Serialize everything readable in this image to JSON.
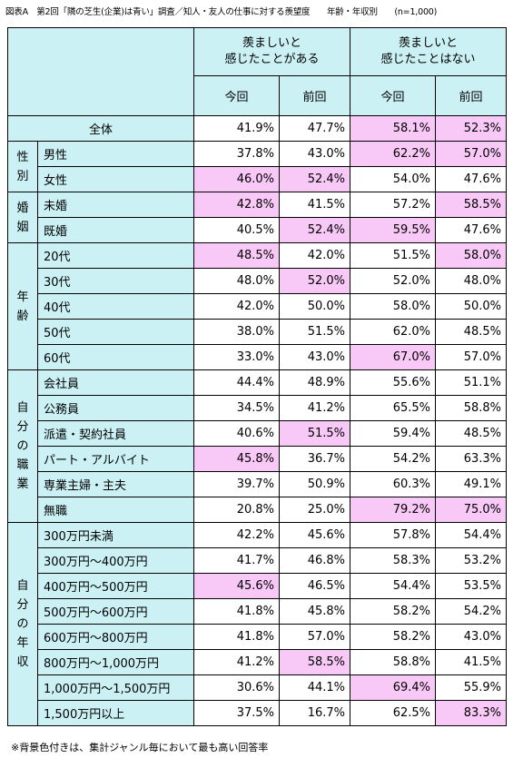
{
  "title": "図表A　第2回「隣の芝生(企業)は青い」調査／知人・友人の仕事に対する羨望度　　年齢・年収別　　(n=1,000)",
  "header": {
    "group1_line1": "羨ましいと",
    "group1_line2": "感じたことがある",
    "group2_line1": "羨ましいと",
    "group2_line2": "感じたことはない",
    "current": "今回",
    "previous": "前回"
  },
  "total": {
    "label": "全体",
    "v": [
      "41.9%",
      "47.7%",
      "58.1%",
      "52.3%"
    ],
    "hl": [
      false,
      false,
      true,
      true
    ]
  },
  "groups": [
    {
      "name": [
        "性",
        "別"
      ],
      "rows": [
        {
          "label": "男性",
          "v": [
            "37.8%",
            "43.0%",
            "62.2%",
            "57.0%"
          ],
          "hl": [
            false,
            false,
            true,
            true
          ]
        },
        {
          "label": "女性",
          "v": [
            "46.0%",
            "52.4%",
            "54.0%",
            "47.6%"
          ],
          "hl": [
            true,
            true,
            false,
            false
          ]
        }
      ]
    },
    {
      "name": [
        "婚",
        "姻"
      ],
      "rows": [
        {
          "label": "未婚",
          "v": [
            "42.8%",
            "41.5%",
            "57.2%",
            "58.5%"
          ],
          "hl": [
            true,
            false,
            false,
            true
          ]
        },
        {
          "label": "既婚",
          "v": [
            "40.5%",
            "52.4%",
            "59.5%",
            "47.6%"
          ],
          "hl": [
            false,
            true,
            true,
            false
          ]
        }
      ]
    },
    {
      "name": [
        "年",
        "齢"
      ],
      "rows": [
        {
          "label": "20代",
          "v": [
            "48.5%",
            "42.0%",
            "51.5%",
            "58.0%"
          ],
          "hl": [
            true,
            false,
            false,
            true
          ]
        },
        {
          "label": "30代",
          "v": [
            "48.0%",
            "52.0%",
            "52.0%",
            "48.0%"
          ],
          "hl": [
            false,
            true,
            false,
            false
          ]
        },
        {
          "label": "40代",
          "v": [
            "42.0%",
            "50.0%",
            "58.0%",
            "50.0%"
          ],
          "hl": [
            false,
            false,
            false,
            false
          ]
        },
        {
          "label": "50代",
          "v": [
            "38.0%",
            "51.5%",
            "62.0%",
            "48.5%"
          ],
          "hl": [
            false,
            false,
            false,
            false
          ]
        },
        {
          "label": "60代",
          "v": [
            "33.0%",
            "43.0%",
            "67.0%",
            "57.0%"
          ],
          "hl": [
            false,
            false,
            true,
            false
          ]
        }
      ]
    },
    {
      "name": [
        "自",
        "分",
        "の",
        "職",
        "業"
      ],
      "rows": [
        {
          "label": "会社員",
          "v": [
            "44.4%",
            "48.9%",
            "55.6%",
            "51.1%"
          ],
          "hl": [
            false,
            false,
            false,
            false
          ]
        },
        {
          "label": "公務員",
          "v": [
            "34.5%",
            "41.2%",
            "65.5%",
            "58.8%"
          ],
          "hl": [
            false,
            false,
            false,
            false
          ]
        },
        {
          "label": "派遣・契約社員",
          "v": [
            "40.6%",
            "51.5%",
            "59.4%",
            "48.5%"
          ],
          "hl": [
            false,
            true,
            false,
            false
          ]
        },
        {
          "label": "パート・アルバイト",
          "v": [
            "45.8%",
            "36.7%",
            "54.2%",
            "63.3%"
          ],
          "hl": [
            true,
            false,
            false,
            false
          ]
        },
        {
          "label": "専業主婦・主夫",
          "v": [
            "39.7%",
            "50.9%",
            "60.3%",
            "49.1%"
          ],
          "hl": [
            false,
            false,
            false,
            false
          ]
        },
        {
          "label": "無職",
          "v": [
            "20.8%",
            "25.0%",
            "79.2%",
            "75.0%"
          ],
          "hl": [
            false,
            false,
            true,
            true
          ]
        }
      ]
    },
    {
      "name": [
        "自",
        "分",
        "の",
        "年",
        "収"
      ],
      "rows": [
        {
          "label": "300万円未満",
          "v": [
            "42.2%",
            "45.6%",
            "57.8%",
            "54.4%"
          ],
          "hl": [
            false,
            false,
            false,
            false
          ]
        },
        {
          "label": "300万円～400万円",
          "v": [
            "41.7%",
            "46.8%",
            "58.3%",
            "53.2%"
          ],
          "hl": [
            false,
            false,
            false,
            false
          ]
        },
        {
          "label": "400万円～500万円",
          "v": [
            "45.6%",
            "46.5%",
            "54.4%",
            "53.5%"
          ],
          "hl": [
            true,
            false,
            false,
            false
          ]
        },
        {
          "label": "500万円～600万円",
          "v": [
            "41.8%",
            "45.8%",
            "58.2%",
            "54.2%"
          ],
          "hl": [
            false,
            false,
            false,
            false
          ]
        },
        {
          "label": "600万円～800万円",
          "v": [
            "41.8%",
            "57.0%",
            "58.2%",
            "43.0%"
          ],
          "hl": [
            false,
            false,
            false,
            false
          ]
        },
        {
          "label": "800万円～1,000万円",
          "v": [
            "41.2%",
            "58.5%",
            "58.8%",
            "41.5%"
          ],
          "hl": [
            false,
            true,
            false,
            false
          ]
        },
        {
          "label": "1,000万円～1,500万円",
          "v": [
            "30.6%",
            "44.1%",
            "69.4%",
            "55.9%"
          ],
          "hl": [
            false,
            false,
            true,
            false
          ]
        },
        {
          "label": "1,500万円以上",
          "v": [
            "37.5%",
            "16.7%",
            "62.5%",
            "83.3%"
          ],
          "hl": [
            false,
            false,
            false,
            true
          ]
        }
      ]
    }
  ],
  "note": "※背景色付きは、集計ジャンル毎において最も高い回答率",
  "colors": {
    "header_bg": "#cbf1f5",
    "highlight_bg": "#f8c8f6"
  }
}
